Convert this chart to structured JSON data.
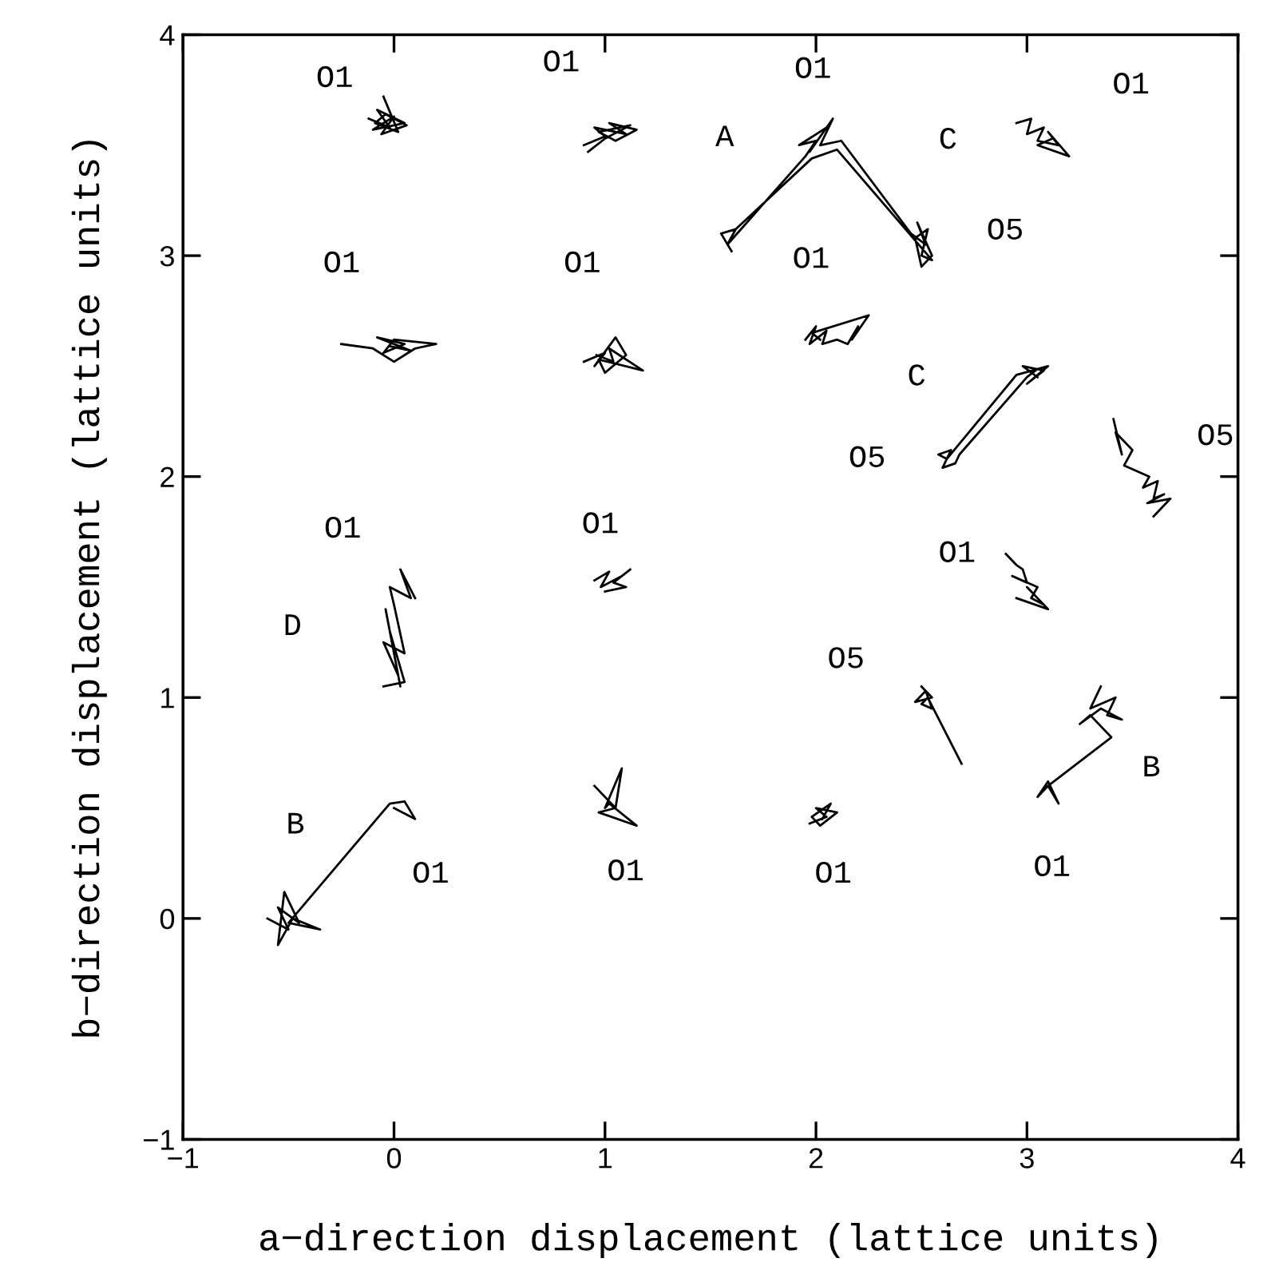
{
  "chart_data": {
    "type": "line",
    "xlabel": "a−direction displacement (lattice units)",
    "ylabel": "b−direction displacement (lattice units)",
    "xlim": [
      -1,
      4
    ],
    "ylim": [
      -1,
      4
    ],
    "xticks": [
      -1,
      0,
      1,
      2,
      3,
      4
    ],
    "yticks": [
      -1,
      0,
      1,
      2,
      3,
      4
    ],
    "grid": false,
    "legend": false,
    "marker": "none",
    "line_style": "solid",
    "series": [
      {
        "color": "#000000",
        "x": [
          -0.12,
          -0.02,
          -0.08,
          0.05,
          -0.1,
          0.0,
          -0.06,
          0.06,
          -0.04,
          -0.09,
          0.02,
          -0.05
        ],
        "values": [
          3.62,
          3.58,
          3.66,
          3.6,
          3.57,
          3.63,
          3.55,
          3.59,
          3.64,
          3.6,
          3.56,
          3.72
        ]
      },
      {
        "color": "#000000",
        "x": [
          0.9,
          1.0,
          0.95,
          1.1,
          1.02,
          1.15,
          1.05,
          0.97,
          1.12,
          1.0,
          0.92
        ],
        "values": [
          3.5,
          3.54,
          3.58,
          3.55,
          3.6,
          3.57,
          3.52,
          3.56,
          3.59,
          3.53,
          3.47
        ]
      },
      {
        "color": "#000000",
        "x": [
          1.6,
          1.55,
          1.62,
          1.58,
          1.95,
          2.0,
          1.92,
          2.05,
          1.97,
          2.08,
          2.02,
          2.12,
          2.45,
          2.52,
          2.48,
          2.55,
          2.5,
          2.47,
          2.53,
          2.5,
          2.55,
          2.1,
          1.98,
          1.62
        ],
        "values": [
          3.02,
          3.1,
          3.12,
          3.05,
          3.45,
          3.52,
          3.5,
          3.58,
          3.47,
          3.62,
          3.5,
          3.52,
          3.1,
          3.05,
          3.15,
          3.0,
          2.95,
          3.08,
          3.12,
          3.0,
          2.98,
          3.48,
          3.44,
          3.12
        ]
      },
      {
        "color": "#000000",
        "x": [
          2.95,
          3.02,
          3.0,
          3.08,
          3.05,
          3.15,
          3.1,
          3.2,
          3.05,
          3.12
        ],
        "values": [
          3.6,
          3.62,
          3.55,
          3.58,
          3.52,
          3.5,
          3.56,
          3.45,
          3.5,
          3.53
        ]
      },
      {
        "color": "#000000",
        "x": [
          -0.25,
          -0.1,
          0.0,
          0.1,
          0.2,
          0.0,
          -0.05,
          0.05,
          -0.08,
          0.08,
          -0.02
        ],
        "values": [
          2.6,
          2.58,
          2.52,
          2.58,
          2.6,
          2.62,
          2.56,
          2.6,
          2.63,
          2.57,
          2.59
        ]
      },
      {
        "color": "#000000",
        "x": [
          0.9,
          1.0,
          0.95,
          1.05,
          1.1,
          1.0,
          0.97,
          1.18,
          1.02,
          1.04,
          0.96
        ],
        "values": [
          2.52,
          2.56,
          2.5,
          2.63,
          2.55,
          2.47,
          2.53,
          2.48,
          2.58,
          2.52,
          2.55
        ]
      },
      {
        "color": "#000000",
        "x": [
          1.95,
          2.0,
          1.97,
          2.05,
          2.03,
          2.1,
          2.15,
          2.2,
          2.17,
          2.25,
          1.98,
          2.02
        ],
        "values": [
          2.62,
          2.68,
          2.6,
          2.66,
          2.6,
          2.62,
          2.6,
          2.68,
          2.62,
          2.73,
          2.65,
          2.62
        ]
      },
      {
        "color": "#000000",
        "x": [
          3.05,
          2.98,
          3.08,
          3.0,
          3.1,
          2.95,
          2.62,
          2.58,
          2.64,
          2.6,
          2.66,
          2.68,
          3.0,
          3.04
        ],
        "values": [
          2.45,
          2.5,
          2.48,
          2.42,
          2.5,
          2.46,
          2.08,
          2.1,
          2.12,
          2.04,
          2.06,
          2.1,
          2.45,
          2.48
        ]
      },
      {
        "color": "#000000",
        "x": [
          3.41,
          3.45,
          3.42,
          3.5,
          3.46,
          3.58,
          3.55,
          3.62,
          3.6,
          3.65,
          3.57,
          3.68,
          3.6
        ],
        "values": [
          2.26,
          2.1,
          2.2,
          2.12,
          2.05,
          2.0,
          1.95,
          1.98,
          1.9,
          1.92,
          1.88,
          1.9,
          1.82
        ]
      },
      {
        "color": "#000000",
        "x": [
          2.9,
          2.95,
          2.98,
          3.0,
          2.93,
          3.05,
          3.02,
          3.08,
          3.0,
          3.1,
          2.95
        ],
        "values": [
          1.65,
          1.6,
          1.58,
          1.52,
          1.55,
          1.5,
          1.45,
          1.42,
          1.5,
          1.4,
          1.45
        ]
      },
      {
        "color": "#000000",
        "x": [
          2.5,
          2.55,
          2.47,
          2.52,
          2.55,
          2.5,
          2.53,
          2.69
        ],
        "values": [
          1.05,
          1.0,
          0.98,
          1.03,
          0.95,
          0.97,
          1.0,
          0.7
        ]
      },
      {
        "color": "#000000",
        "x": [
          3.35,
          3.3,
          3.42,
          3.38,
          3.45,
          3.35,
          3.25,
          3.3,
          3.4,
          3.1,
          3.05,
          3.1,
          3.15,
          3.1
        ],
        "values": [
          1.05,
          0.95,
          1.0,
          0.92,
          0.9,
          0.95,
          0.88,
          0.92,
          0.82,
          0.6,
          0.55,
          0.62,
          0.52,
          0.6
        ]
      },
      {
        "color": "#000000",
        "x": [
          1.97,
          2.05,
          2.0,
          2.1,
          2.02,
          1.98,
          2.07,
          2.03
        ],
        "values": [
          0.43,
          0.46,
          0.5,
          0.48,
          0.42,
          0.46,
          0.52,
          0.45
        ]
      },
      {
        "color": "#000000",
        "x": [
          0.95,
          1.05,
          1.08,
          1.0,
          1.02,
          1.15,
          0.97,
          1.05
        ],
        "values": [
          0.6,
          0.5,
          0.68,
          0.5,
          0.52,
          0.42,
          0.48,
          0.5
        ]
      },
      {
        "color": "#000000",
        "x": [
          -0.6,
          -0.5,
          -0.55,
          -0.45,
          -0.52,
          -0.55,
          -0.48,
          -0.35,
          -0.5,
          -0.02,
          0.05,
          0.1,
          0.0
        ],
        "values": [
          0.0,
          -0.05,
          0.05,
          -0.02,
          0.12,
          -0.12,
          0.0,
          -0.05,
          -0.02,
          0.52,
          0.53,
          0.45,
          0.5
        ]
      },
      {
        "color": "#000000",
        "x": [
          -0.05,
          0.05,
          -0.02,
          0.03,
          -0.04,
          0.02,
          -0.05,
          0.05,
          0.0,
          -0.02,
          0.08,
          0.03,
          0.1
        ],
        "values": [
          1.05,
          1.07,
          1.3,
          1.05,
          1.4,
          1.1,
          1.25,
          1.2,
          1.42,
          1.5,
          1.45,
          1.58,
          1.45
        ]
      },
      {
        "color": "#000000",
        "x": [
          0.95,
          1.02,
          0.98,
          1.08,
          1.12,
          1.04,
          1.1,
          1.0
        ],
        "values": [
          1.53,
          1.57,
          1.5,
          1.55,
          1.58,
          1.52,
          1.5,
          1.48
        ]
      }
    ],
    "annotations": [
      {
        "text": "O1",
        "x": -0.05,
        "y": 3.72
      },
      {
        "text": "O1",
        "x": 0.95,
        "y": 3.58
      },
      {
        "text": "O1",
        "x": 2.08,
        "y": 3.62
      },
      {
        "text": "O1",
        "x": 3.02,
        "y": 3.62
      },
      {
        "text": "A",
        "x": 1.62,
        "y": 3.12
      },
      {
        "text": "C",
        "x": 2.31,
        "y": 3.28
      },
      {
        "text": "O5",
        "x": 2.55,
        "y": 3.0
      },
      {
        "text": "O1",
        "x": -0.08,
        "y": 2.63
      },
      {
        "text": "O1",
        "x": 1.05,
        "y": 2.63
      },
      {
        "text": "O1",
        "x": 2.25,
        "y": 2.73
      },
      {
        "text": "C",
        "x": 2.95,
        "y": 2.46
      },
      {
        "text": "O5",
        "x": 2.6,
        "y": 2.04
      },
      {
        "text": "O5",
        "x": 3.41,
        "y": 2.26
      },
      {
        "text": "O1",
        "x": 0.03,
        "y": 1.58
      },
      {
        "text": "D",
        "x": -0.04,
        "y": 1.4
      },
      {
        "text": "O1",
        "x": 1.02,
        "y": 1.57
      },
      {
        "text": "O1",
        "x": 2.9,
        "y": 1.65
      },
      {
        "text": "O5",
        "x": 2.5,
        "y": 1.05
      },
      {
        "text": "B",
        "x": 3.4,
        "y": 0.82
      },
      {
        "text": "B",
        "x": -0.52,
        "y": 0.12
      },
      {
        "text": "O1",
        "x": 0.1,
        "y": 0.45
      },
      {
        "text": "O1",
        "x": 1.15,
        "y": 0.42
      },
      {
        "text": "O1",
        "x": 2.05,
        "y": 0.46
      },
      {
        "text": "O1",
        "x": 3.15,
        "y": 0.52
      }
    ]
  }
}
